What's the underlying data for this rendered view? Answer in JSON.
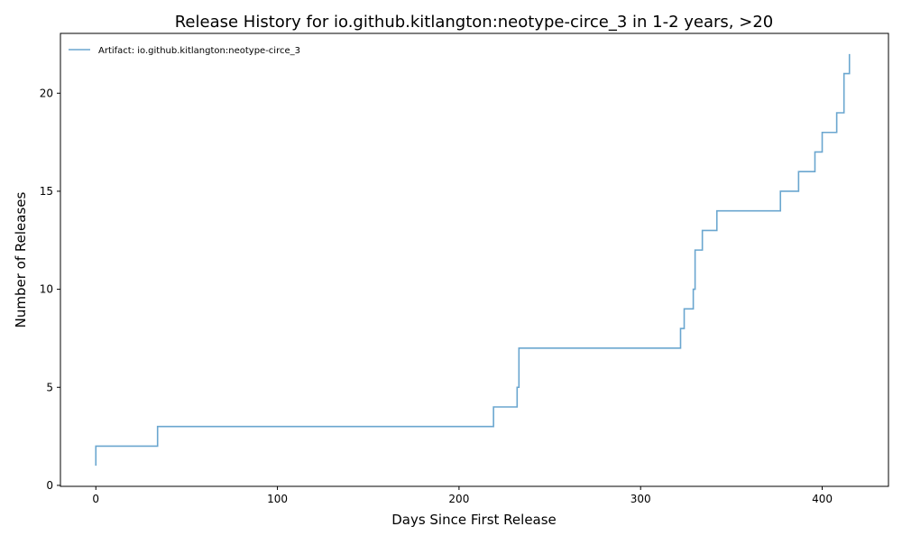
{
  "chart_data": {
    "type": "line",
    "title": "Release History for io.github.kitlangton:neotype-circe_3 in 1-2 years, >20",
    "xlabel": "Days Since First Release",
    "ylabel": "Number of Releases",
    "xlim": [
      -19.5,
      436.5
    ],
    "ylim": [
      -0.05,
      23.05
    ],
    "xticks": [
      0,
      100,
      200,
      300,
      400
    ],
    "yticks": [
      0,
      5,
      10,
      15,
      20
    ],
    "grid": false,
    "legend_position": "top-left",
    "step": "post",
    "series": [
      {
        "name": "Artifact: io.github.kitlangton:neotype-circe_3",
        "color": "#6aa6cf",
        "x": [
          0,
          0,
          34,
          219,
          232,
          233,
          322,
          324,
          329,
          330,
          334,
          342,
          377,
          387,
          396,
          400,
          408,
          412,
          415
        ],
        "y": [
          1,
          2,
          3,
          4,
          5,
          7,
          8,
          9,
          10,
          12,
          13,
          14,
          15,
          16,
          17,
          18,
          19,
          21,
          22
        ]
      }
    ]
  }
}
